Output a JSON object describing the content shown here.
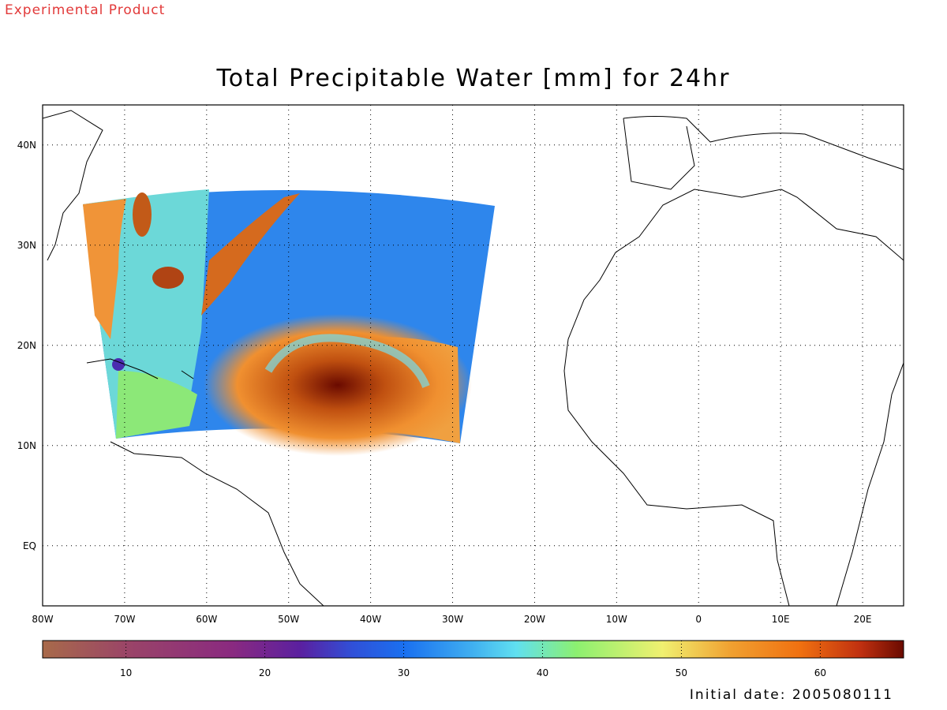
{
  "header": {
    "product_tag": "Experimental Product",
    "title": "Total Precipitable Water [mm] for 24hr"
  },
  "footer": {
    "initial_date": "Initial date: 2005080111"
  },
  "map": {
    "lon_range": [
      -80,
      25
    ],
    "lat_range": [
      -6,
      44
    ],
    "lon_labels": [
      "80W",
      "70W",
      "60W",
      "50W",
      "40W",
      "30W",
      "20W",
      "10W",
      "0",
      "10E",
      "20E"
    ],
    "lat_labels": [
      "40N",
      "30N",
      "20N",
      "10N",
      "EQ"
    ],
    "grid": "dotted",
    "feature": "cyclonic moisture swirl near 16N 47W"
  },
  "colorbar": {
    "range": [
      4,
      66
    ],
    "ticks": [
      "10",
      "20",
      "30",
      "40",
      "50",
      "60"
    ],
    "colors": [
      "#a86a4a",
      "#8a2a80",
      "#5a20a0",
      "#1a70f0",
      "#60e0f0",
      "#8cf070",
      "#f0f070",
      "#f08020",
      "#e06010",
      "#6a0a00"
    ]
  }
}
